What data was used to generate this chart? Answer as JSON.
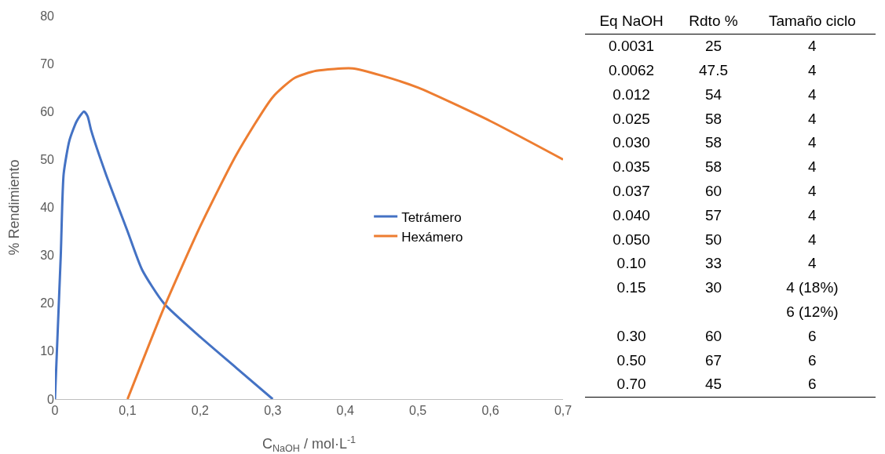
{
  "chart_data": [
    {
      "type": "line",
      "xlabel": "C$_{NaOH}$ / mol·L$^{-1}$",
      "ylabel": "% Rendimiento",
      "marker": "none",
      "line_style": "solid",
      "legend": "right",
      "xlim": [
        0,
        0.7
      ],
      "ylim": [
        0,
        80
      ],
      "xticks": [
        0,
        {
          "value": 0.1,
          "label": "0,1"
        },
        {
          "value": 0.2,
          "label": "0,2"
        },
        {
          "value": 0.3,
          "label": "0,3"
        },
        {
          "value": 0.4,
          "label": "0,4"
        },
        {
          "value": 0.5,
          "label": "0,5"
        },
        {
          "value": 0.6,
          "label": "0,6"
        },
        {
          "value": 0.7,
          "label": "0,7"
        }
      ],
      "yticks": [
        0,
        10,
        20,
        30,
        40,
        50,
        60,
        70,
        80
      ],
      "series": [
        {
          "name": "Tetrámero",
          "color": "#4472c4",
          "x": [
            0,
            0.008,
            0.012,
            0.02,
            0.03,
            0.04,
            0.045,
            0.05,
            0.07,
            0.1,
            0.12,
            0.15,
            0.2,
            0.25,
            0.3
          ],
          "values": [
            0,
            30,
            47,
            54,
            58,
            60,
            59,
            56,
            47,
            35,
            27,
            20,
            13,
            6.5,
            0
          ]
        },
        {
          "name": "Hexámero",
          "color": "#ed7d31",
          "x": [
            0.1,
            0.15,
            0.2,
            0.25,
            0.3,
            0.33,
            0.36,
            0.41,
            0.45,
            0.5,
            0.6,
            0.7
          ],
          "values": [
            0,
            19,
            36,
            51,
            63,
            67,
            68.5,
            69,
            67.5,
            65,
            58,
            50
          ]
        }
      ]
    },
    {
      "type": "other",
      "categories": [
        "Eq NaOH",
        "Rdto %",
        "Tamaño ciclo"
      ],
      "annotations": [
        "0.0031",
        "25",
        "4",
        "0.0062",
        "47.5",
        "4",
        "0.012",
        "54",
        "4",
        "0.025",
        "58",
        "4",
        "0.030",
        "58",
        "4",
        "0.035",
        "58",
        "4",
        "0.037",
        "60",
        "4",
        "0.040",
        "57",
        "4",
        "0.050",
        "50",
        "4",
        "0.10",
        "33",
        "4",
        "0.15",
        "30",
        "4 (18%)",
        null,
        null,
        "6 (12%)",
        "0.30",
        "60",
        "6",
        "0.50",
        "67",
        "6",
        "0.70",
        "45",
        "6"
      ]
    }
  ]
}
